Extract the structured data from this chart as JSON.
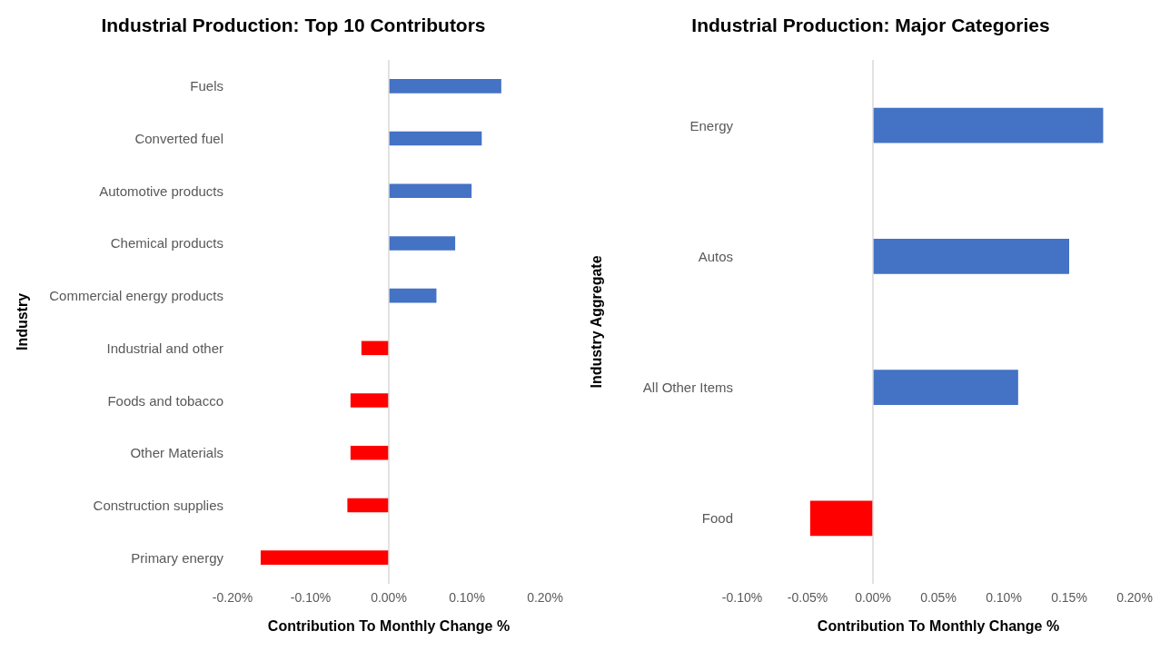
{
  "chart_data": [
    {
      "type": "bar",
      "orientation": "horizontal",
      "title": "Industrial Production: Top 10 Contributors",
      "xlabel": "Contribution To Monthly Change %",
      "ylabel": "Industry",
      "categories": [
        "Fuels",
        "Converted fuel",
        "Automotive products",
        "Chemical products",
        "Commercial energy products",
        "Industrial and other",
        "Foods and tobacco",
        "Other Materials",
        "Construction supplies",
        "Primary energy"
      ],
      "values": [
        0.144,
        0.119,
        0.106,
        0.085,
        0.061,
        -0.035,
        -0.049,
        -0.049,
        -0.053,
        -0.164
      ],
      "colors": [
        "#4472c4",
        "#4472c4",
        "#4472c4",
        "#4472c4",
        "#4472c4",
        "#ff0000",
        "#ff0000",
        "#ff0000",
        "#ff0000",
        "#ff0000"
      ],
      "xlim": [
        -0.2,
        0.2
      ],
      "xticks": [
        {
          "value": -0.2,
          "label": "-0.20%"
        },
        {
          "value": -0.1,
          "label": "-0.10%"
        },
        {
          "value": 0,
          "label": "0.00%"
        },
        {
          "value": 0.1,
          "label": "0.10%"
        },
        {
          "value": 0.2,
          "label": "0.20%"
        }
      ],
      "ref_lines": [
        {
          "axis": "x",
          "value": 0,
          "color": "#d9d9d9"
        }
      ],
      "grid": false
    },
    {
      "type": "bar",
      "orientation": "horizontal",
      "title": "Industrial Production: Major Categories",
      "xlabel": "Contribution To Monthly Change %",
      "ylabel": "Industry Aggregate",
      "categories": [
        "Energy",
        "Autos",
        "All Other Items",
        "Food"
      ],
      "values": [
        0.176,
        0.15,
        0.111,
        -0.048
      ],
      "colors": [
        "#4472c4",
        "#4472c4",
        "#4472c4",
        "#ff0000"
      ],
      "xlim": [
        -0.1,
        0.2
      ],
      "xticks": [
        {
          "value": -0.1,
          "label": "-0.10%"
        },
        {
          "value": -0.05,
          "label": "-0.05%"
        },
        {
          "value": 0,
          "label": "0.00%"
        },
        {
          "value": 0.05,
          "label": "0.05%"
        },
        {
          "value": 0.1,
          "label": "0.10%"
        },
        {
          "value": 0.15,
          "label": "0.15%"
        },
        {
          "value": 0.2,
          "label": "0.20%"
        }
      ],
      "ref_lines": [
        {
          "axis": "x",
          "value": 0,
          "color": "#d9d9d9"
        }
      ],
      "grid": false
    }
  ]
}
